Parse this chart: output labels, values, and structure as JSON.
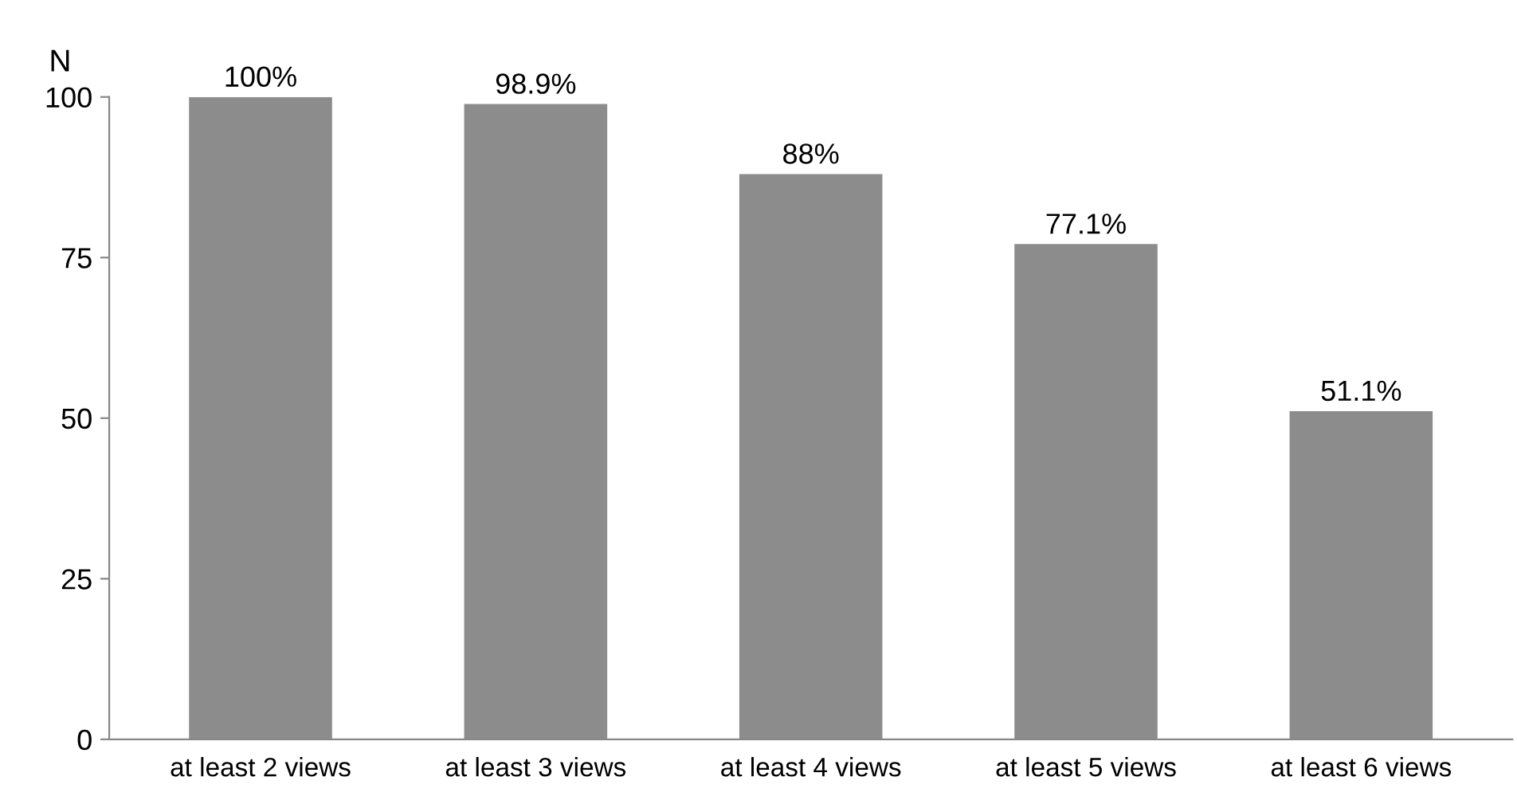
{
  "chart_data": {
    "type": "bar",
    "ylabel": "N",
    "categories": [
      "at least 2 views",
      "at least 3 views",
      "at least 4 views",
      "at least 5 views",
      "at least 6 views"
    ],
    "values": [
      100,
      98.9,
      88,
      77.1,
      51.1
    ],
    "value_labels": [
      "100%",
      "98.9%",
      "88%",
      "77.1%",
      "51.1%"
    ],
    "color": "#8c8c8c",
    "ylim": [
      0,
      100
    ],
    "yticks": [
      0,
      25,
      50,
      75,
      100
    ],
    "grid": false,
    "legend": false
  }
}
